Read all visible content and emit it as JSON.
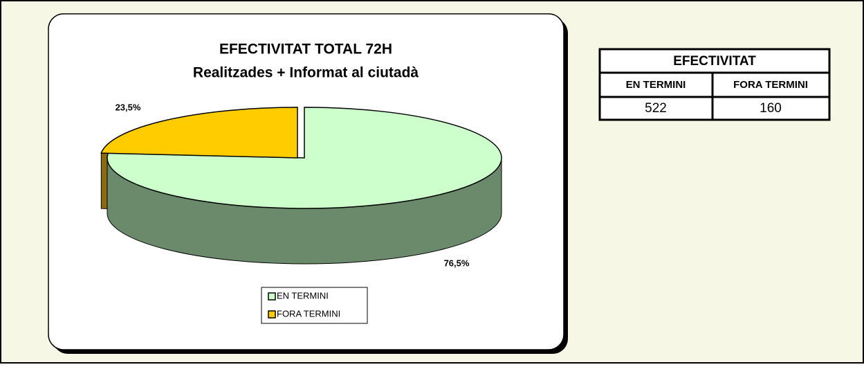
{
  "chart_data": {
    "type": "pie",
    "title": "EFECTIVITAT TOTAL 72H",
    "subtitle": "Realitzades + Informat al ciutadà",
    "categories": [
      "EN TERMINI",
      "FORA TERMINI"
    ],
    "values": [
      76.5,
      23.5
    ],
    "value_labels": [
      "76,5%",
      "23,5%"
    ],
    "colors": [
      "#ccffcc",
      "#ffcc00"
    ],
    "side_colors": [
      "#6b8a6b",
      "#8a6b10"
    ]
  },
  "table": {
    "title": "EFECTIVITAT",
    "columns": [
      "EN TERMINI",
      "FORA TERMINI"
    ],
    "rows": [
      [
        522,
        160
      ]
    ]
  }
}
